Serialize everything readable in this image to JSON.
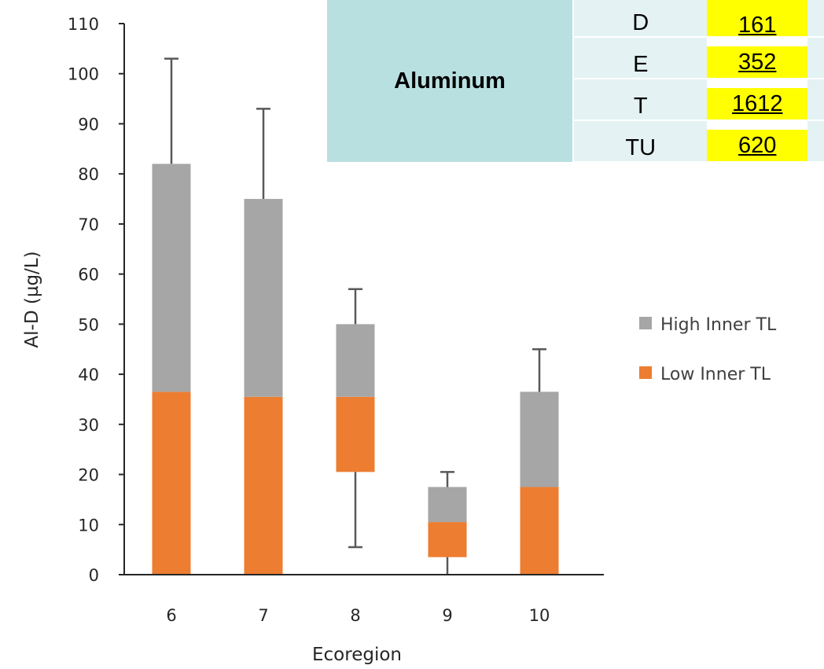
{
  "chart_data": {
    "type": "bar",
    "stacked": true,
    "xlabel": "Ecoregion",
    "ylabel": "Al-D (µg/L)",
    "categories": [
      "6",
      "7",
      "8",
      "9",
      "10"
    ],
    "ylim": [
      0,
      110
    ],
    "yticks": [
      0,
      10,
      20,
      30,
      40,
      50,
      60,
      70,
      80,
      90,
      100,
      110
    ],
    "series": [
      {
        "name": "Low Inner TL",
        "color": "#ed7d31",
        "lower": [
          0,
          0,
          20.5,
          3.5,
          0
        ],
        "upper": [
          36.5,
          35.5,
          35.5,
          10.5,
          17.5
        ]
      },
      {
        "name": "High Inner TL",
        "color": "#a6a6a6",
        "lower": [
          36.5,
          35.5,
          35.5,
          10.5,
          17.5
        ],
        "upper": [
          82,
          75,
          50,
          17.5,
          36.5
        ]
      }
    ],
    "whiskers": [
      {
        "low": null,
        "high": 103
      },
      {
        "low": null,
        "high": 93
      },
      {
        "low": 5.5,
        "high": 57
      },
      {
        "low": 0,
        "high": 20.5
      },
      {
        "low": null,
        "high": 45
      }
    ],
    "legend_position": "right"
  },
  "table": {
    "metal": "Aluminum",
    "rows": [
      {
        "code": "D",
        "value": "161"
      },
      {
        "code": "E",
        "value": "352"
      },
      {
        "code": "T",
        "value": "1612"
      },
      {
        "code": "TU",
        "value": "620"
      }
    ]
  }
}
